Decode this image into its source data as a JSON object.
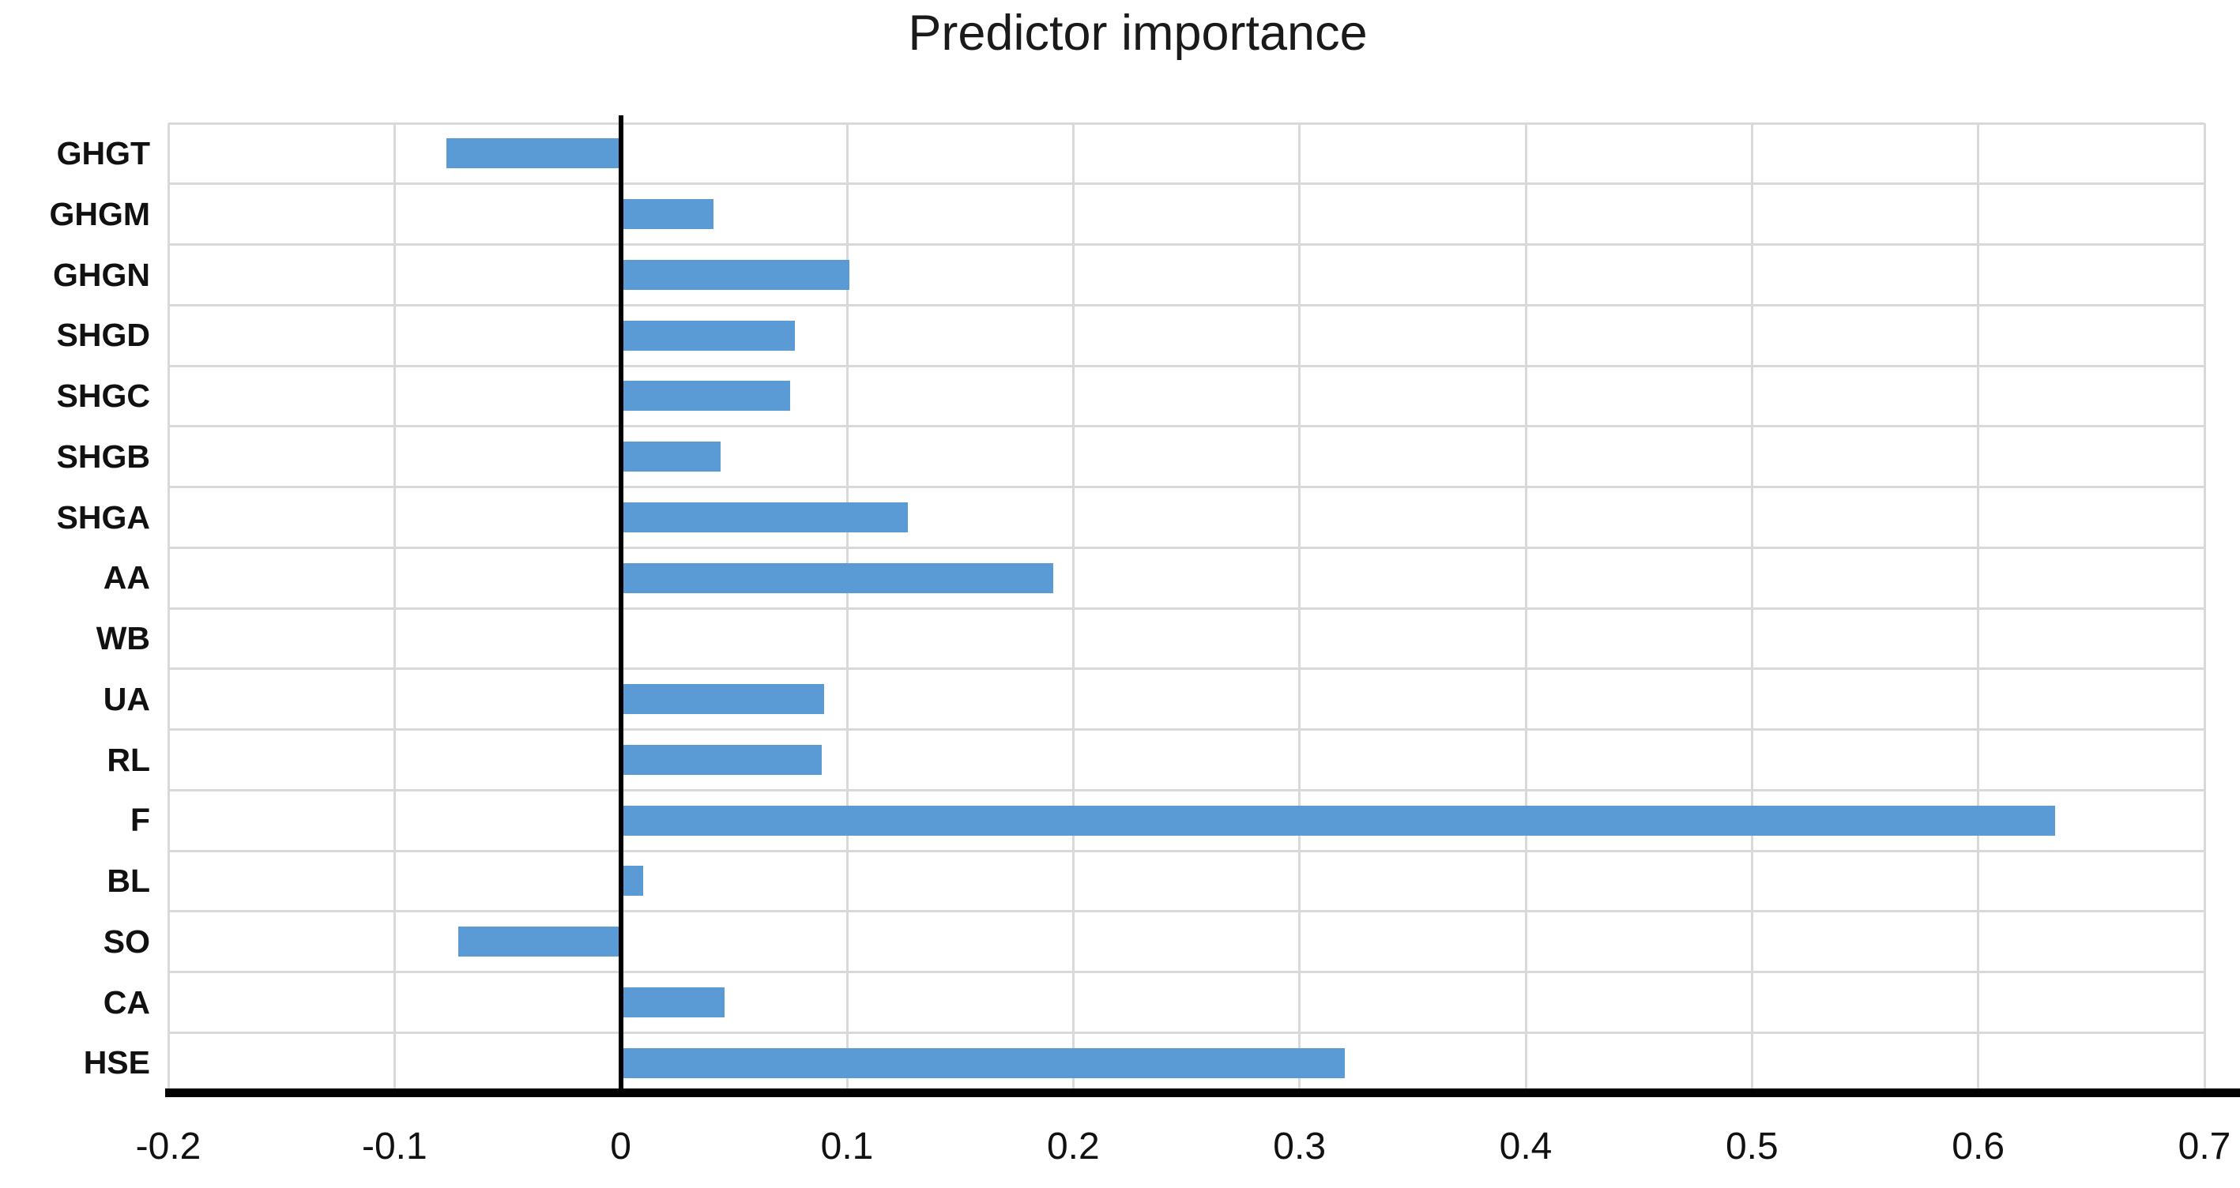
{
  "title": "Predictor importance",
  "colors": {
    "bar": "#5b9bd5",
    "gridline": "#d9d9d9",
    "axis_line": "#000000",
    "text": "#111111"
  },
  "chart_data": {
    "type": "bar",
    "orientation": "horizontal",
    "title": "Predictor importance",
    "xlabel": "",
    "ylabel": "",
    "grid": true,
    "legend": false,
    "xlim": [
      -0.2,
      0.7
    ],
    "xticks": [
      -0.2,
      -0.1,
      0,
      0.1,
      0.2,
      0.3,
      0.4,
      0.5,
      0.6,
      0.7
    ],
    "xtick_labels": [
      "-0.2",
      "-0.1",
      "0",
      "0.1",
      "0.2",
      "0.3",
      "0.4",
      "0.5",
      "0.6",
      "0.7"
    ],
    "categories": [
      "GHGT",
      "GHGM",
      "GHGN",
      "SHGD",
      "SHGC",
      "SHGB",
      "SHGA",
      "AA",
      "WB",
      "UA",
      "RL",
      "F",
      "BL",
      "SO",
      "CA",
      "HSE"
    ],
    "values": [
      -0.077,
      0.041,
      0.101,
      0.077,
      0.075,
      0.044,
      0.127,
      0.191,
      0,
      0.09,
      0.089,
      0.634,
      0.01,
      -0.072,
      0.046,
      0.32
    ]
  }
}
